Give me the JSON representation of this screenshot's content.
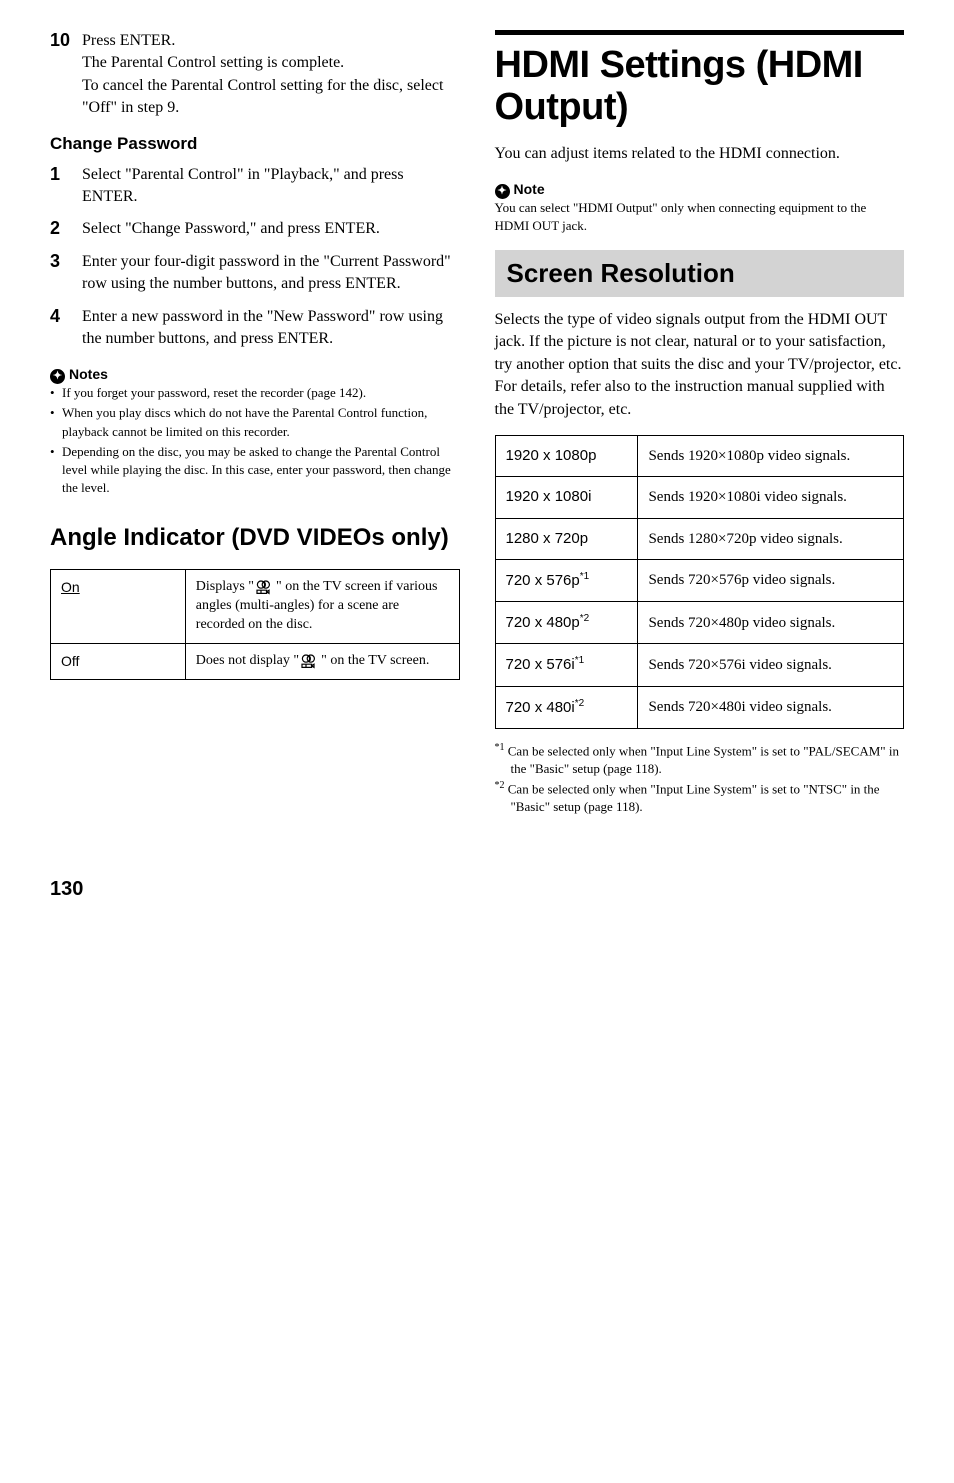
{
  "left": {
    "step10": {
      "num": "10",
      "l1": "Press ENTER.",
      "l2": "The Parental Control setting is complete.",
      "l3": "To cancel the Parental Control setting for the disc, select \"Off\" in step 9."
    },
    "change_pw_heading": "Change Password",
    "steps": [
      {
        "num": "1",
        "text": "Select \"Parental Control\" in \"Playback,\" and press ENTER."
      },
      {
        "num": "2",
        "text": "Select \"Change Password,\" and press ENTER."
      },
      {
        "num": "3",
        "text": "Enter your four-digit password in the \"Current Password\" row using the number buttons, and press ENTER."
      },
      {
        "num": "4",
        "text": "Enter a new password in the \"New Password\" row using the number buttons, and press ENTER."
      }
    ],
    "notes_label": "Notes",
    "notes": [
      "If you forget your password, reset the recorder (page 142).",
      "When you play discs which do not have the Parental Control function, playback cannot be limited on this recorder.",
      "Depending on the disc, you may be asked to change the Parental Control level while playing the disc. In this case, enter your password, then change the level."
    ],
    "angle_heading": "Angle Indicator (DVD VIDEOs only)",
    "angle_table": {
      "on_label": "On",
      "on_pre": "Displays \"",
      "on_post": "\" on the TV screen if various angles (multi-angles) for a scene are recorded on the disc.",
      "off_label": "Off",
      "off_pre": "Does not display \"",
      "off_post": "\" on the TV screen."
    }
  },
  "right": {
    "title": "HDMI Settings (HDMI Output)",
    "intro": "You can adjust items related to the HDMI connection.",
    "note_label": "Note",
    "note_text": "You can select \"HDMI Output\" only when connecting equipment to the HDMI OUT jack.",
    "resolution_heading": "Screen Resolution",
    "resolution_intro": "Selects the type of video signals output from the HDMI OUT jack. If the picture is not clear, natural or to your satisfaction, try another option that suits the disc and your TV/projector, etc. For details, refer also to the instruction manual supplied with the TV/projector, etc.",
    "res_table": [
      {
        "k": "1920 x 1080p",
        "sup": "",
        "v": "Sends 1920×1080p video signals."
      },
      {
        "k": "1920 x 1080i",
        "sup": "",
        "v": "Sends 1920×1080i video signals."
      },
      {
        "k": "1280 x 720p",
        "sup": "",
        "v": "Sends 1280×720p video signals."
      },
      {
        "k": "720 x 576p",
        "sup": "*1",
        "v": "Sends 720×576p video signals."
      },
      {
        "k": "720 x 480p",
        "sup": "*2",
        "v": "Sends 720×480p video signals."
      },
      {
        "k": "720 x 576i",
        "sup": "*1",
        "v": "Sends 720×576i video signals."
      },
      {
        "k": "720 x 480i",
        "sup": "*2",
        "v": "Sends 720×480i video signals."
      }
    ],
    "footnotes": [
      {
        "sup": "*1",
        "text": "Can be selected only when \"Input Line System\" is set to \"PAL/SECAM\" in the \"Basic\" setup (page 118)."
      },
      {
        "sup": "*2",
        "text": "Can be selected only when \"Input Line System\" is set to \"NTSC\" in the \"Basic\" setup (page 118)."
      }
    ]
  },
  "page_num": "130",
  "colors": {
    "bg": "#ffffff",
    "text": "#000000",
    "subsection_bg": "#d3d3d3"
  }
}
